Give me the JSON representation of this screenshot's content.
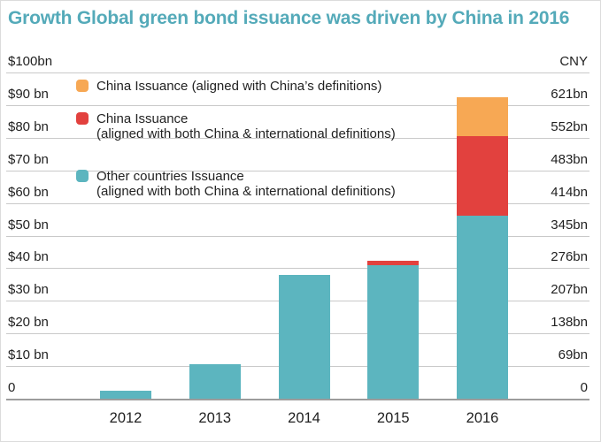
{
  "title": {
    "color": "#54aab9"
  },
  "legend": {
    "items": [
      {
        "id": "china-aligned",
        "swatch_color": "#F7A854",
        "line1": "China Issuance (aligned with China’s definitions)",
        "line2": ""
      },
      {
        "id": "china-both",
        "swatch_color": "#E2413E",
        "line1": "China Issuance",
        "line2": "(aligned with both China & international definitions)"
      },
      {
        "id": "other-countries",
        "swatch_color": "#5CB5BF",
        "line1": "Other countries Issuance",
        "line2": "(aligned with both China & international definitions)"
      }
    ]
  },
  "chart_data": {
    "type": "bar",
    "stacked": true,
    "title": "Growth Global green bond issuance was driven by China in 2016",
    "categories": [
      "2012",
      "2013",
      "2014",
      "2015",
      "2016"
    ],
    "series": [
      {
        "id": "other-countries",
        "name": "Other countries Issuance (aligned with both China & international definitions)",
        "color": "#5CB5BF",
        "values": [
          2.5,
          10.5,
          38,
          41,
          56
        ]
      },
      {
        "id": "china-both",
        "name": "China Issuance (aligned with both China & international definitions)",
        "color": "#E2413E",
        "values": [
          0,
          0,
          0,
          1.2,
          24.5
        ]
      },
      {
        "id": "china-aligned",
        "name": "China Issuance (aligned with China’s definitions)",
        "color": "#F7A854",
        "values": [
          0,
          0,
          0,
          0,
          11.8
        ]
      }
    ],
    "xlabel": "",
    "ylabel_left": "$bn",
    "ylabel_right": "CNY",
    "ylim": [
      0,
      100
    ],
    "grid": true,
    "legend_position": "top-left",
    "left_tick_labels": [
      "$100bn",
      "$90 bn",
      "$80 bn",
      "$70 bn",
      "$60 bn",
      "$50 bn",
      "$40 bn",
      "$30 bn",
      "$20 bn",
      "$10 bn",
      "0"
    ],
    "right_tick_labels": [
      "CNY",
      "621bn",
      "552bn",
      "483bn",
      "414bn",
      "345bn",
      "276bn",
      "207bn",
      "138bn",
      "69bn",
      "0"
    ]
  }
}
